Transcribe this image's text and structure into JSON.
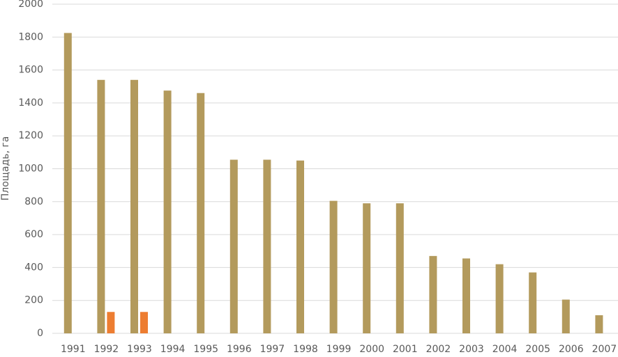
{
  "chart_data": {
    "type": "bar",
    "y_label": "Площадь, га",
    "categories": [
      "1991",
      "1992",
      "1993",
      "1994",
      "1995",
      "1996",
      "1997",
      "1998",
      "1999",
      "2000",
      "2001",
      "2002",
      "2003",
      "2004",
      "2005",
      "2006",
      "2007"
    ],
    "series": [
      {
        "color": "#b39a5c",
        "values": [
          1825,
          1540,
          1540,
          1475,
          1460,
          1055,
          1055,
          1050,
          805,
          790,
          790,
          470,
          455,
          420,
          370,
          205,
          110
        ]
      },
      {
        "color": "#ed7d31",
        "values": [
          null,
          130,
          130,
          null,
          null,
          null,
          null,
          null,
          null,
          null,
          null,
          null,
          null,
          null,
          null,
          null,
          null
        ]
      }
    ],
    "ylim": [
      0,
      2000
    ],
    "yticks": [
      0,
      200,
      400,
      600,
      800,
      1000,
      1200,
      1400,
      1600,
      1800,
      2000
    ],
    "grid": true
  }
}
